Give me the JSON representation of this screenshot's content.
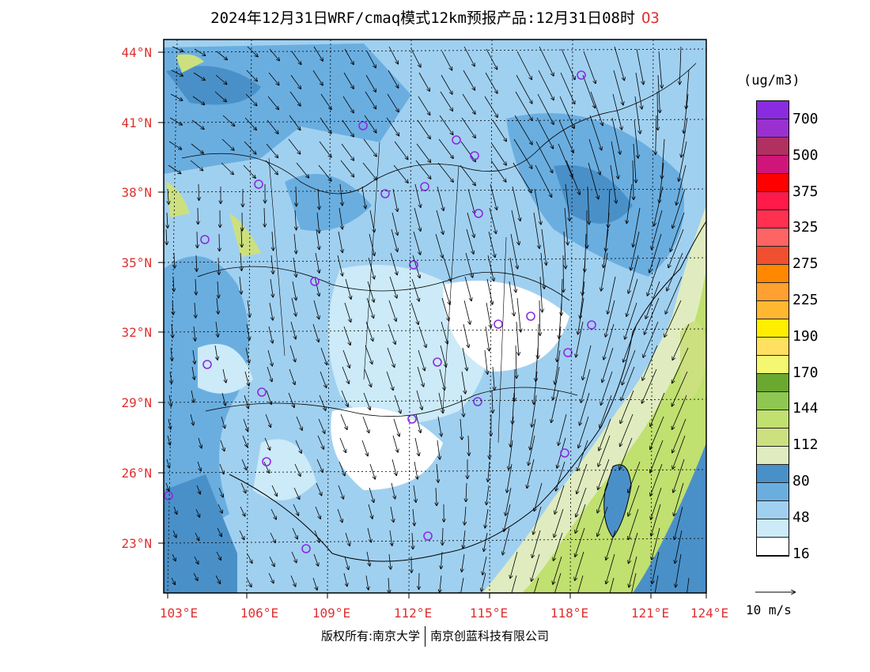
{
  "title": "2024年12月31日WRF/cmaq模式12km预报产品:12月31日08时",
  "species": "O3",
  "lat_labels": [
    "44°N",
    "41°N",
    "38°N",
    "35°N",
    "32°N",
    "29°N",
    "26°N",
    "23°N"
  ],
  "lon_labels": [
    "103°E",
    "106°E",
    "109°E",
    "112°E",
    "115°E",
    "118°E",
    "121°E",
    "124°E"
  ],
  "colorbar": {
    "unit": "(ug/m3)",
    "colors": [
      "#8a2be2",
      "#9b30d0",
      "#b03060",
      "#d0157a",
      "#ff0000",
      "#ff1a4a",
      "#ff3050",
      "#ff6464",
      "#f05030",
      "#ff8800",
      "#ffa030",
      "#ffb830",
      "#ffee00",
      "#ffe060",
      "#f4f870",
      "#6aa830",
      "#8ec850",
      "#c0e070",
      "#cce080",
      "#e0ecc0",
      "#4a90c8",
      "#6aaee0",
      "#a0d0f0",
      "#cceaf8",
      "#ffffff"
    ],
    "labels": [
      "700",
      "500",
      "375",
      "325",
      "275",
      "225",
      "190",
      "170",
      "144",
      "112",
      "80",
      "48",
      "16"
    ]
  },
  "vector_scale": "10 m/s",
  "footer": {
    "left": "版权所有:南京大学",
    "right": "南京创蓝科技有限公司"
  },
  "colors": {
    "axis_label": "#e03030",
    "station_marker": "#8a2be2"
  }
}
